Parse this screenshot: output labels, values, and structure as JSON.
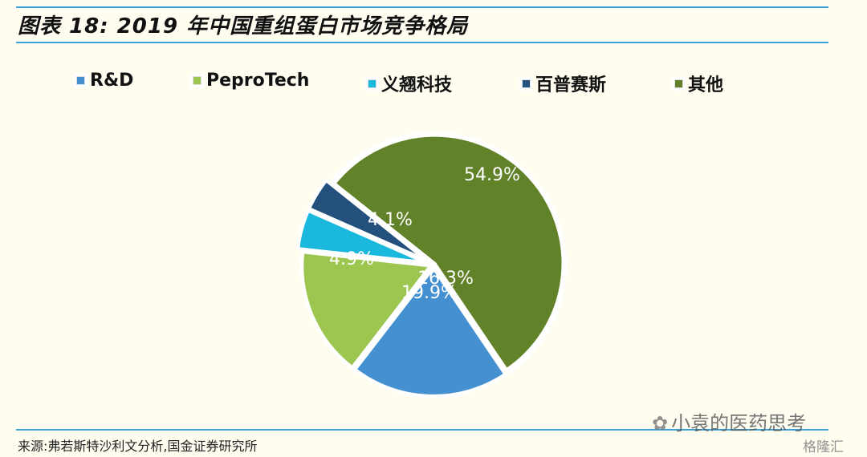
{
  "header": {
    "title": "图表 18:  2019 年中国重组蛋白市场竞争格局"
  },
  "colors": {
    "rule": "#3aa0d8",
    "background": "#fffcf0"
  },
  "chart_data": {
    "type": "pie",
    "title": "",
    "legend_position": "top",
    "series": [
      {
        "name": "R&D",
        "value": 19.9,
        "label": "19.9%",
        "color": "#4590d0"
      },
      {
        "name": "PeproTech",
        "value": 16.3,
        "label": "16.3%",
        "color": "#9dc651"
      },
      {
        "name": "义翘科技",
        "value": 4.9,
        "label": "4.9%",
        "color": "#1ab8dc"
      },
      {
        "name": "百普赛斯",
        "value": 4.1,
        "label": "4.1%",
        "color": "#24507e"
      },
      {
        "name": "其他",
        "value": 54.9,
        "label": "54.9%",
        "color": "#62822a"
      }
    ]
  },
  "footer": {
    "source": "来源:弗若斯特沙利文分析,国金证券研究所",
    "watermark": "小袁的医药思考",
    "watermark_icon": "wechat-icon",
    "watermark2": "格隆汇"
  }
}
